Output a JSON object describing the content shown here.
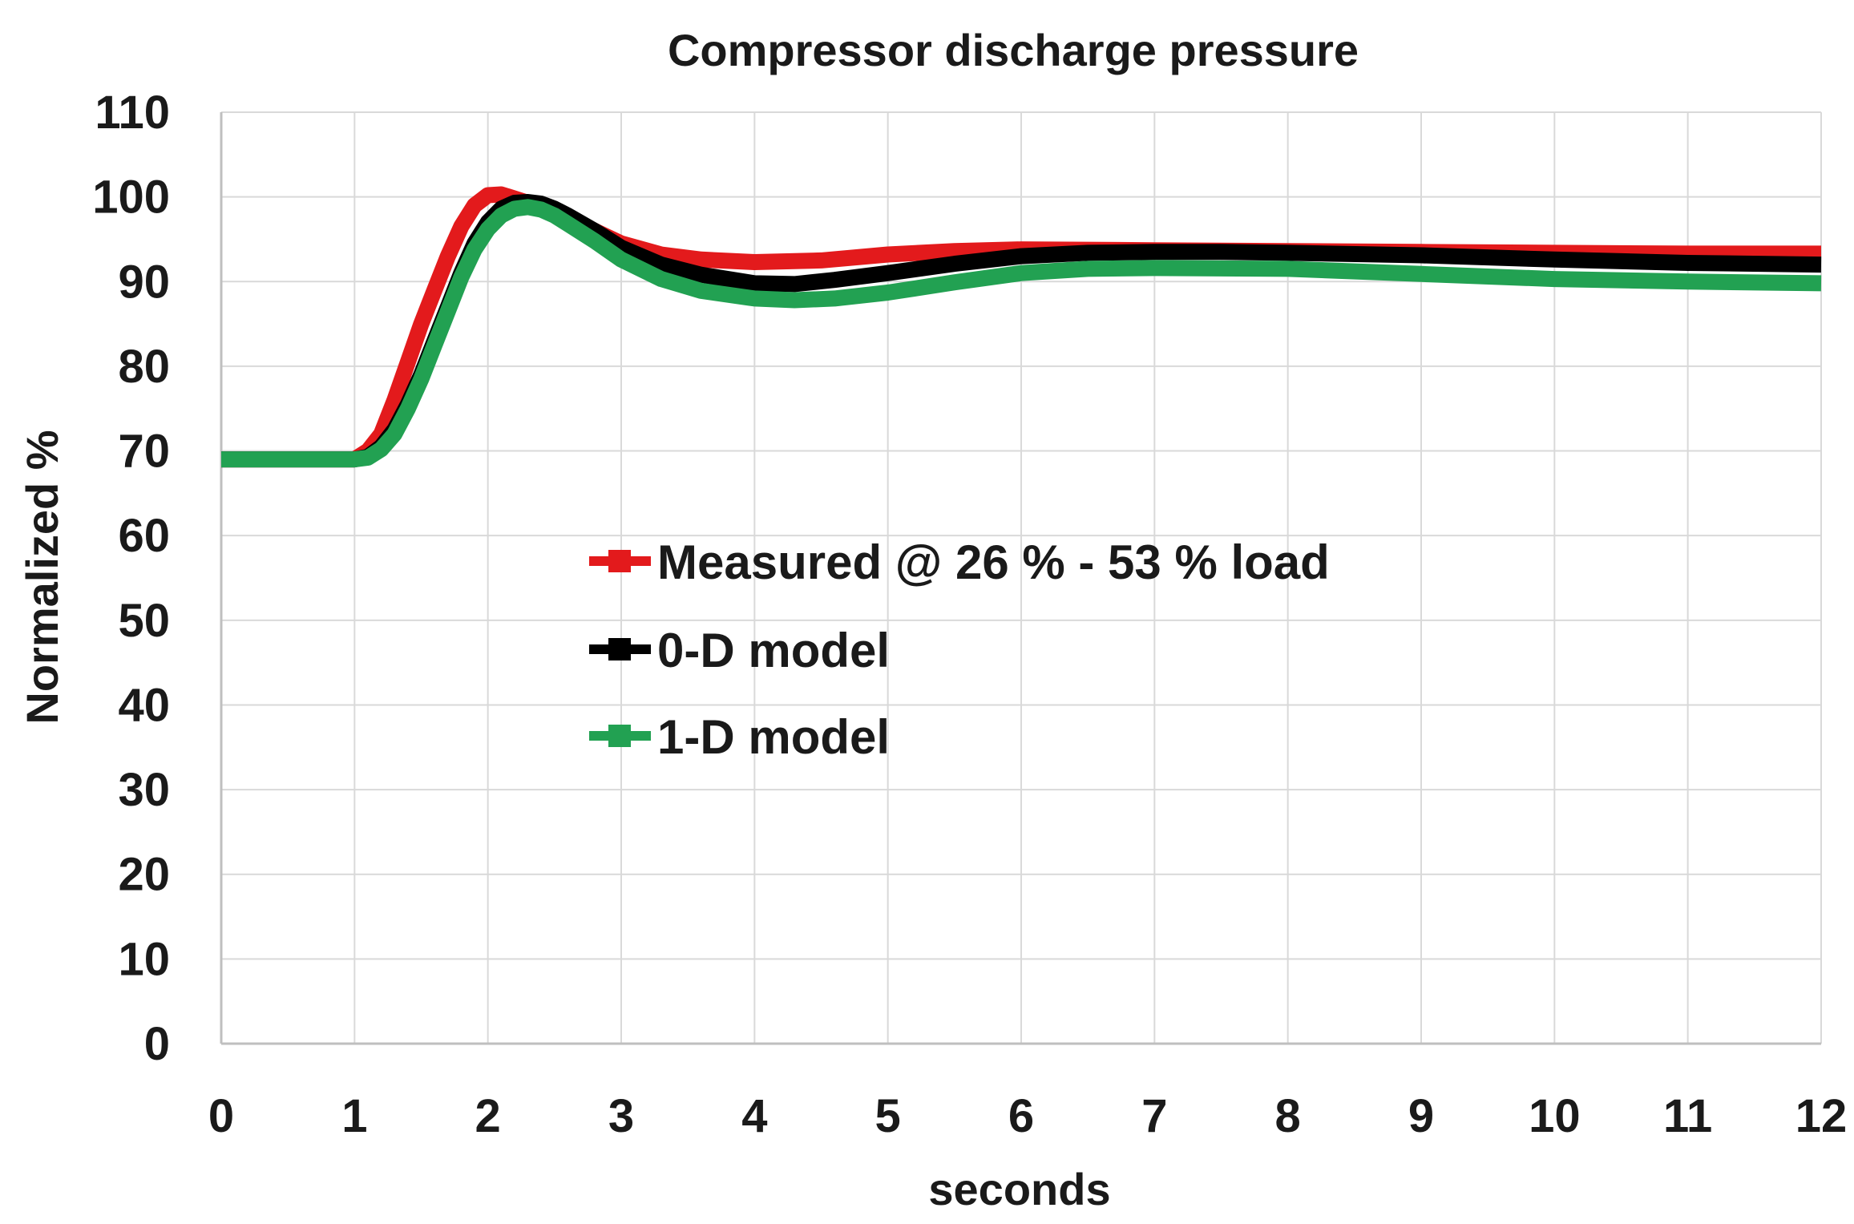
{
  "chart_data": {
    "type": "line",
    "title": "Compressor discharge pressure",
    "xlabel": "seconds",
    "ylabel": "Normalized %",
    "xlim": [
      0,
      12
    ],
    "ylim": [
      0,
      110
    ],
    "x_ticks": [
      0,
      1,
      2,
      3,
      4,
      5,
      6,
      7,
      8,
      9,
      10,
      11,
      12
    ],
    "y_ticks": [
      0,
      10,
      20,
      30,
      40,
      50,
      60,
      70,
      80,
      90,
      100,
      110
    ],
    "grid": true,
    "legend_position": "center",
    "series": [
      {
        "name": "Measured @ 26 % - 53 % load",
        "color": "#e31a1c",
        "x": [
          0,
          0.5,
          1.0,
          1.1,
          1.2,
          1.3,
          1.4,
          1.5,
          1.6,
          1.7,
          1.8,
          1.9,
          2.0,
          2.1,
          2.2,
          2.3,
          2.4,
          2.6,
          2.8,
          3.0,
          3.3,
          3.6,
          4.0,
          4.5,
          5.0,
          5.5,
          6.0,
          7.0,
          8.0,
          9.0,
          10.0,
          11.0,
          12.0
        ],
        "y": [
          69,
          69,
          69,
          70,
          72,
          76,
          80.5,
          85,
          89,
          93,
          96.5,
          99,
          100.2,
          100.3,
          99.8,
          99.3,
          98.8,
          97.5,
          96,
          94.5,
          93.2,
          92.6,
          92.3,
          92.5,
          93.2,
          93.6,
          93.8,
          93.7,
          93.6,
          93.5,
          93.4,
          93.3,
          93.3
        ]
      },
      {
        "name": "0-D model",
        "color": "#000000",
        "x": [
          0,
          0.5,
          1.0,
          1.1,
          1.2,
          1.3,
          1.4,
          1.5,
          1.6,
          1.7,
          1.8,
          1.9,
          2.0,
          2.1,
          2.2,
          2.3,
          2.4,
          2.5,
          2.6,
          2.8,
          3.0,
          3.3,
          3.6,
          4.0,
          4.3,
          4.6,
          5.0,
          5.5,
          6.0,
          6.5,
          7.0,
          7.5,
          8.0,
          9.0,
          10.0,
          11.0,
          12.0
        ],
        "y": [
          69,
          69,
          69,
          69.3,
          70.5,
          72.5,
          75.5,
          79,
          83,
          87,
          91,
          94.5,
          97,
          98.6,
          99.3,
          99.4,
          99.2,
          98.6,
          97.8,
          96,
          94,
          92,
          90.8,
          89.8,
          89.7,
          90.2,
          91,
          92.1,
          93,
          93.4,
          93.5,
          93.5,
          93.4,
          93.1,
          92.6,
          92.2,
          92
        ]
      },
      {
        "name": "1-D model",
        "color": "#22a152",
        "x": [
          0,
          0.5,
          1.0,
          1.1,
          1.2,
          1.3,
          1.4,
          1.5,
          1.6,
          1.7,
          1.8,
          1.9,
          2.0,
          2.1,
          2.2,
          2.3,
          2.4,
          2.5,
          2.6,
          2.8,
          3.0,
          3.3,
          3.6,
          4.0,
          4.3,
          4.6,
          5.0,
          5.5,
          6.0,
          6.5,
          7.0,
          8.0,
          9.0,
          10.0,
          11.0,
          12.0
        ],
        "y": [
          69,
          69,
          69,
          69.2,
          70.2,
          72,
          75,
          78.5,
          82.5,
          86.5,
          90.5,
          93.8,
          96.2,
          97.8,
          98.6,
          98.8,
          98.5,
          97.8,
          96.8,
          94.8,
          92.6,
          90.3,
          88.9,
          88,
          87.8,
          88,
          88.7,
          89.9,
          91,
          91.5,
          91.6,
          91.5,
          90.9,
          90.3,
          90,
          89.8
        ]
      }
    ]
  }
}
